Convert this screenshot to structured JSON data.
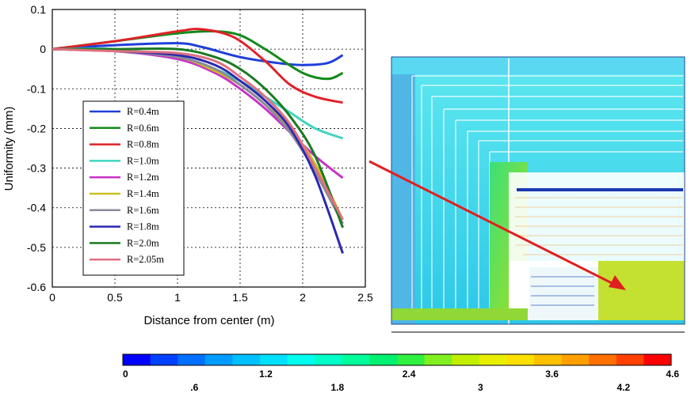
{
  "chart_data": [
    {
      "type": "line",
      "xlabel": "Distance from center (m)",
      "ylabel": "Uniformity (mm)",
      "xlim": [
        0,
        2.5
      ],
      "ylim": [
        -0.6,
        0.1
      ],
      "xticks": [
        "0",
        "0.5",
        "1",
        "1.5",
        "2",
        "2.5"
      ],
      "yticks": [
        "0.1",
        "0",
        "-0.1",
        "-0.2",
        "-0.3",
        "-0.4",
        "-0.5",
        "-0.6"
      ],
      "grid": true,
      "legend_position": "left",
      "series": [
        {
          "name": "R=0.4m",
          "color": "#1f3fd8",
          "x": [
            0,
            0.5,
            1.0,
            1.2,
            1.5,
            1.8,
            2.0,
            2.2,
            2.32
          ],
          "y": [
            0,
            0.01,
            0.015,
            0.005,
            -0.02,
            -0.035,
            -0.04,
            -0.035,
            -0.015
          ]
        },
        {
          "name": "R=0.6m",
          "color": "#138a1a",
          "x": [
            0,
            0.5,
            1.0,
            1.3,
            1.5,
            1.7,
            2.0,
            2.2,
            2.32
          ],
          "y": [
            0,
            0.02,
            0.04,
            0.045,
            0.035,
            0.0,
            -0.06,
            -0.075,
            -0.06
          ]
        },
        {
          "name": "R=0.8m",
          "color": "#e0222a",
          "x": [
            0,
            0.5,
            1.0,
            1.2,
            1.45,
            1.7,
            1.9,
            2.1,
            2.32
          ],
          "y": [
            0,
            0.02,
            0.045,
            0.05,
            0.03,
            -0.03,
            -0.09,
            -0.12,
            -0.135
          ]
        },
        {
          "name": "R=1.0m",
          "color": "#3fd4c0",
          "x": [
            0,
            0.5,
            1.0,
            1.3,
            1.5,
            1.7,
            1.9,
            2.1,
            2.32
          ],
          "y": [
            0,
            0.0,
            -0.02,
            -0.05,
            -0.08,
            -0.12,
            -0.16,
            -0.2,
            -0.225
          ]
        },
        {
          "name": "R=1.2m",
          "color": "#c832c8",
          "x": [
            0,
            0.5,
            1.0,
            1.3,
            1.5,
            1.7,
            1.9,
            2.1,
            2.32
          ],
          "y": [
            0,
            -0.005,
            -0.025,
            -0.06,
            -0.1,
            -0.15,
            -0.21,
            -0.27,
            -0.325
          ]
        },
        {
          "name": "R=1.4m",
          "color": "#c8c020",
          "x": [
            0,
            0.5,
            1.0,
            1.3,
            1.5,
            1.7,
            1.9,
            2.1,
            2.32
          ],
          "y": [
            0,
            -0.005,
            -0.02,
            -0.055,
            -0.09,
            -0.14,
            -0.2,
            -0.29,
            -0.43
          ]
        },
        {
          "name": "R=1.6m",
          "color": "#8a8a9a",
          "x": [
            0,
            0.5,
            1.0,
            1.3,
            1.5,
            1.7,
            1.9,
            2.1,
            2.32
          ],
          "y": [
            0,
            -0.005,
            -0.02,
            -0.05,
            -0.09,
            -0.14,
            -0.21,
            -0.31,
            -0.44
          ]
        },
        {
          "name": "R=1.8m",
          "color": "#2a2ab0",
          "x": [
            0,
            0.5,
            1.0,
            1.3,
            1.5,
            1.7,
            1.9,
            2.1,
            2.32
          ],
          "y": [
            0,
            -0.005,
            -0.015,
            -0.04,
            -0.08,
            -0.13,
            -0.2,
            -0.32,
            -0.515
          ]
        },
        {
          "name": "R=2.0m",
          "color": "#1a7a22",
          "x": [
            0,
            0.5,
            1.0,
            1.3,
            1.5,
            1.7,
            1.9,
            2.1,
            2.32
          ],
          "y": [
            0,
            0.0,
            0.0,
            -0.02,
            -0.05,
            -0.1,
            -0.17,
            -0.27,
            -0.45
          ]
        },
        {
          "name": "R=2.05m",
          "color": "#e07080",
          "x": [
            0,
            0.5,
            1.0,
            1.3,
            1.5,
            1.7,
            1.9,
            2.1,
            2.32
          ],
          "y": [
            0,
            -0.005,
            -0.01,
            -0.03,
            -0.07,
            -0.12,
            -0.19,
            -0.3,
            -0.43
          ]
        }
      ]
    },
    {
      "type": "heatmap",
      "colorbar": {
        "min": 0,
        "max": 4.6,
        "upper_labels": [
          "0",
          "1.2",
          "2.4",
          "3.6",
          "4.6"
        ],
        "lower_labels": [
          ".6",
          "1.8",
          "3",
          "4.2"
        ],
        "colors": [
          "#0000ff",
          "#0040ff",
          "#0070ff",
          "#009cff",
          "#00c0ff",
          "#00e0ff",
          "#00ffee",
          "#00ffc8",
          "#00ff9c",
          "#00f070",
          "#30f040",
          "#80f020",
          "#c0f000",
          "#e8f000",
          "#ffe000",
          "#ffc000",
          "#ffa000",
          "#ff7000",
          "#ff4000",
          "#ff0000"
        ]
      }
    }
  ]
}
